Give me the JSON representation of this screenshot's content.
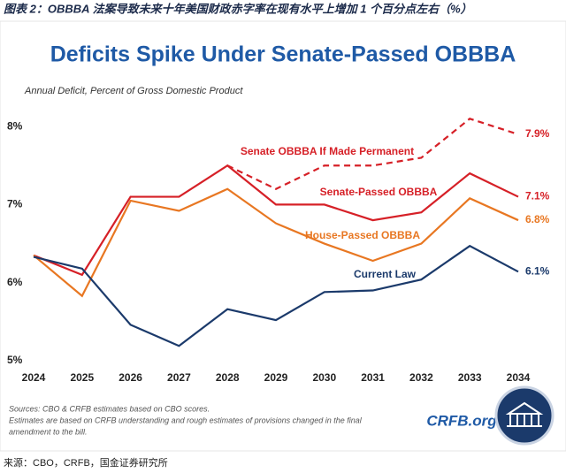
{
  "header": "图表 2：OBBBA 法案导致未来十年美国财政赤字率在现有水平上增加 1 个百分点左右（%）",
  "chart_data": {
    "type": "line",
    "title": "Deficits Spike Under Senate-Passed OBBBA",
    "subtitle": "Annual Deficit, Percent of Gross Domestic Product",
    "categories": [
      "2024",
      "2025",
      "2026",
      "2027",
      "2028",
      "2029",
      "2030",
      "2031",
      "2032",
      "2033",
      "2034"
    ],
    "ylim": [
      5,
      8.3
    ],
    "yticks": [
      {
        "value": 5,
        "label": "5%"
      },
      {
        "value": 6,
        "label": "6%"
      },
      {
        "value": 7,
        "label": "7%"
      },
      {
        "value": 8,
        "label": "8%"
      }
    ],
    "grid": false,
    "series": [
      {
        "name": "Senate OBBBA If Made Permanent",
        "color": "#d62027",
        "dashed": true,
        "values": [
          null,
          null,
          null,
          null,
          7.5,
          7.2,
          7.5,
          7.5,
          7.6,
          8.1,
          7.9
        ],
        "value_labels": [
          null,
          null,
          null,
          null,
          null,
          null,
          null,
          null,
          null,
          null,
          "7.9%"
        ]
      },
      {
        "name": "Senate-Passed OBBBA",
        "color": "#d62027",
        "values": [
          6.35,
          6.1,
          7.1,
          7.1,
          7.5,
          7.0,
          7.0,
          6.8,
          6.9,
          7.4,
          7.1
        ],
        "value_labels": [
          null,
          null,
          null,
          null,
          null,
          null,
          null,
          null,
          null,
          null,
          "7.1%"
        ]
      },
      {
        "name": "House-Passed OBBBA",
        "color": "#e87722",
        "values": [
          6.35,
          5.83,
          7.05,
          6.92,
          7.2,
          6.76,
          6.5,
          6.28,
          6.5,
          7.08,
          6.8
        ],
        "value_labels": [
          null,
          null,
          null,
          null,
          null,
          null,
          null,
          null,
          null,
          null,
          "6.8%"
        ]
      },
      {
        "name": "Current Law",
        "color": "#1b3a6b",
        "values": [
          6.33,
          6.18,
          5.46,
          5.19,
          5.66,
          5.52,
          5.88,
          5.9,
          6.04,
          6.47,
          6.14
        ],
        "value_labels": [
          null,
          null,
          null,
          null,
          null,
          null,
          null,
          null,
          null,
          null,
          "6.1%"
        ]
      }
    ],
    "notes": [
      "Sources: CBO & CRFB estimates based on CBO scores.",
      "Estimates are based on CRFB understanding and rough estimates of provisions changed in the final",
      "amendment to the bill."
    ],
    "logo": "CRFB.org"
  },
  "source": "来源：CBO，CRFB，国金证券研究所"
}
